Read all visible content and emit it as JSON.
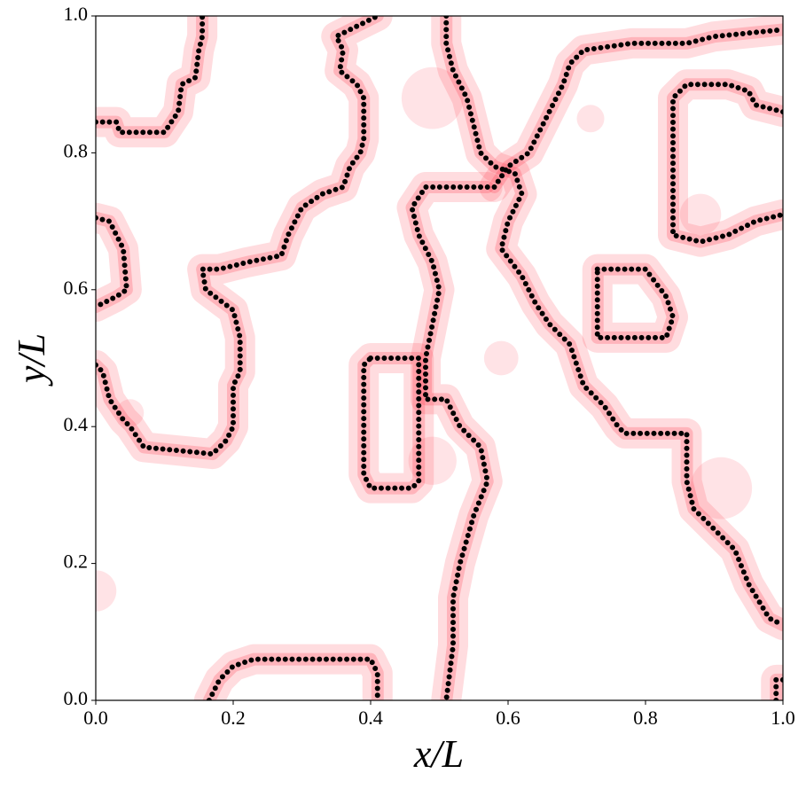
{
  "chart_data": {
    "type": "scatter",
    "xlabel": "x/L",
    "ylabel": "y/L",
    "xlim": [
      0,
      1
    ],
    "ylim": [
      0,
      1
    ],
    "xticks": [
      {
        "value": 0,
        "label": "0.0"
      },
      0.2,
      0.4,
      0.6,
      0.8,
      {
        "value": 1,
        "label": "1.0"
      }
    ],
    "yticks": [
      {
        "value": 0,
        "label": "0.0"
      },
      0.2,
      0.4,
      0.6,
      0.8,
      {
        "value": 1,
        "label": "1.0"
      }
    ],
    "color": "#000000",
    "halo_color": "#ff3b4e",
    "series": [
      {
        "x": [
          0,
          0.03,
          0.035,
          0.1,
          0.11,
          0.12,
          0.125,
          0.145,
          0.15,
          0.155,
          0.155
        ],
        "y": [
          0.845,
          0.845,
          0.83,
          0.83,
          0.845,
          0.86,
          0.9,
          0.91,
          0.95,
          0.97,
          1.0
        ]
      },
      {
        "x": [
          0,
          0.02,
          0.03,
          0.04,
          0.045,
          0.03,
          0.01,
          0
        ],
        "y": [
          0.705,
          0.7,
          0.68,
          0.66,
          0.6,
          0.59,
          0.58,
          0.575
        ]
      },
      {
        "x": [
          0,
          0.01,
          0.02,
          0.04,
          0.05,
          0.07,
          0.17,
          0.19,
          0.2,
          0.2,
          0.21,
          0.21,
          0.2,
          0.16,
          0.155,
          0.18,
          0.22,
          0.27,
          0.28,
          0.3,
          0.33,
          0.36,
          0.37,
          0.385,
          0.39,
          0.39,
          0.38,
          0.355,
          0.36,
          0.35,
          0.37,
          0.39,
          0.41
        ],
        "y": [
          0.49,
          0.48,
          0.44,
          0.41,
          0.4,
          0.37,
          0.36,
          0.38,
          0.4,
          0.46,
          0.48,
          0.53,
          0.57,
          0.6,
          0.63,
          0.63,
          0.64,
          0.65,
          0.68,
          0.72,
          0.74,
          0.75,
          0.78,
          0.8,
          0.82,
          0.88,
          0.9,
          0.92,
          0.95,
          0.97,
          0.98,
          0.99,
          1.0
        ]
      },
      {
        "x": [
          0.4,
          0.47,
          0.47,
          0.46,
          0.4,
          0.39,
          0.39,
          0.4
        ],
        "y": [
          0.5,
          0.5,
          0.32,
          0.31,
          0.31,
          0.33,
          0.49,
          0.5
        ]
      },
      {
        "x": [
          0.51,
          0.51,
          0.52,
          0.54,
          0.55,
          0.56,
          0.58,
          0.61,
          0.62,
          0.6,
          0.59,
          0.62,
          0.64,
          0.66,
          0.69,
          0.71,
          0.74,
          0.76,
          0.77,
          0.86,
          0.86,
          0.87,
          0.9,
          0.93,
          0.95,
          0.98,
          1.0
        ],
        "y": [
          1.0,
          0.96,
          0.92,
          0.88,
          0.84,
          0.8,
          0.78,
          0.77,
          0.74,
          0.7,
          0.66,
          0.62,
          0.58,
          0.55,
          0.52,
          0.46,
          0.43,
          0.4,
          0.39,
          0.39,
          0.32,
          0.28,
          0.25,
          0.22,
          0.17,
          0.12,
          0.11
        ]
      },
      {
        "x": [
          0.58,
          0.6,
          0.63,
          0.66,
          0.68,
          0.69,
          0.71,
          0.78,
          0.86,
          0.9,
          1.0
        ],
        "y": [
          0.75,
          0.78,
          0.8,
          0.86,
          0.9,
          0.93,
          0.95,
          0.96,
          0.96,
          0.97,
          0.98
        ]
      },
      {
        "x": [
          0.57,
          0.48,
          0.46,
          0.47,
          0.49,
          0.5,
          0.49,
          0.48,
          0.48,
          0.51,
          0.53,
          0.56,
          0.57,
          0.55,
          0.53,
          0.52,
          0.52,
          0.51
        ],
        "y": [
          0.75,
          0.75,
          0.72,
          0.68,
          0.64,
          0.6,
          0.55,
          0.5,
          0.44,
          0.44,
          0.4,
          0.37,
          0.32,
          0.27,
          0.2,
          0.15,
          0.08,
          0.0
        ]
      },
      {
        "x": [
          1.0,
          0.96,
          0.95,
          0.92,
          0.86,
          0.84,
          0.84,
          0.88,
          0.92,
          0.96,
          1.0
        ],
        "y": [
          0.86,
          0.87,
          0.89,
          0.9,
          0.9,
          0.88,
          0.68,
          0.67,
          0.68,
          0.7,
          0.71
        ]
      },
      {
        "x": [
          0.73,
          0.8,
          0.83,
          0.84,
          0.83,
          0.73,
          0.73
        ],
        "y": [
          0.63,
          0.63,
          0.59,
          0.56,
          0.53,
          0.53,
          0.63
        ]
      },
      {
        "x": [
          0.165,
          0.18,
          0.2,
          0.23,
          0.4,
          0.41,
          0.41
        ],
        "y": [
          0.0,
          0.03,
          0.05,
          0.06,
          0.06,
          0.04,
          0.0
        ]
      },
      {
        "x": [
          0.99,
          0.99,
          1.0
        ],
        "y": [
          0.0,
          0.03,
          0.03
        ]
      }
    ],
    "circles": {
      "x": [
        0.49,
        0.91,
        0.49,
        0.88,
        0.0,
        0.59,
        0.05,
        0.72
      ],
      "y": [
        0.88,
        0.31,
        0.35,
        0.71,
        0.16,
        0.5,
        0.42,
        0.85
      ],
      "r": [
        0.045,
        0.045,
        0.035,
        0.03,
        0.03,
        0.025,
        0.02,
        0.02
      ]
    }
  }
}
